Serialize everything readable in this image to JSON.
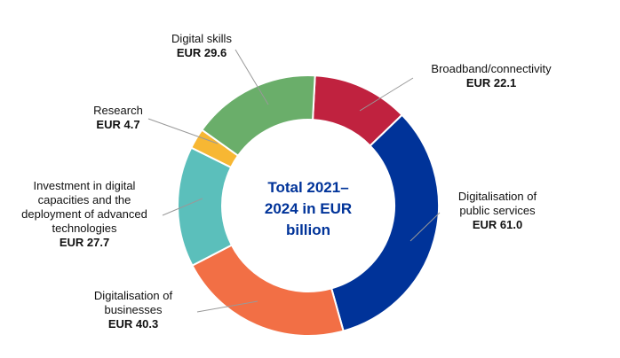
{
  "chart_data": {
    "type": "donut",
    "center_label": "Total 2021–2024 in EUR billion",
    "categories": [
      "Broadband/connectivity",
      "Digitalisation of public services",
      "Digitalisation of businesses",
      "Investment in digital capacities and the deployment of advanced technologies",
      "Research",
      "Digital skills"
    ],
    "values": [
      22.1,
      61.0,
      40.3,
      27.7,
      4.7,
      29.6
    ],
    "value_labels": [
      "EUR 22.1",
      "EUR 61.0",
      "EUR 40.3",
      "EUR 27.7",
      "EUR 4.7",
      "EUR 29.6"
    ],
    "colors": [
      "#c0223f",
      "#003399",
      "#f26f45",
      "#5bbfbb",
      "#f7b733",
      "#6aae6a"
    ]
  }
}
